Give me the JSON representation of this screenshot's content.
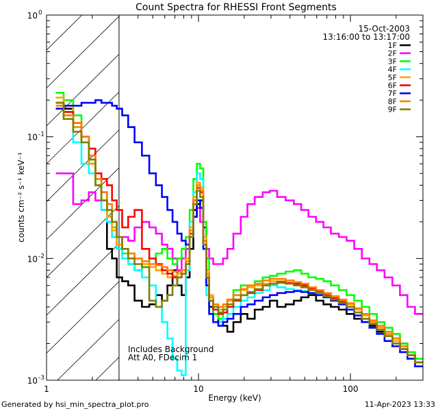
{
  "chart_data": {
    "type": "line",
    "title": "Count Spectra for RHESSI Front Segments",
    "xlabel": "Energy (keV)",
    "ylabel": "counts cm⁻² s⁻¹ keV⁻¹",
    "xscale": "log",
    "yscale": "log",
    "xlim": [
      1,
      300
    ],
    "ylim": [
      0.001,
      1
    ],
    "x_ticks": [
      {
        "value": 1,
        "label": "1"
      },
      {
        "value": 10,
        "label": "10"
      },
      {
        "value": 100,
        "label": "100"
      }
    ],
    "y_ticks": [
      {
        "value": 1,
        "base": "10",
        "exp": "0"
      },
      {
        "value": 0.1,
        "base": "10",
        "exp": "-1"
      },
      {
        "value": 0.01,
        "base": "10",
        "exp": "-2"
      },
      {
        "value": 0.001,
        "base": "10",
        "exp": "-3"
      }
    ],
    "date": "15-Oct-2003",
    "time_range": "13:16:00 to 13:17:00",
    "annotations": [
      "Includes Background",
      "Att A0, FDecim 1"
    ],
    "excluded_region": {
      "x_max": 3,
      "style": "hatched"
    },
    "legend_position": "top-right",
    "series": [
      {
        "name": "1F",
        "color": "#000000",
        "x": [
          1.2,
          1.4,
          1.6,
          1.8,
          2.0,
          2.2,
          2.4,
          2.6,
          2.8,
          3.0,
          3.3,
          3.6,
          4.0,
          4.5,
          5,
          5.5,
          6,
          6.5,
          7,
          7.5,
          8,
          8.5,
          9,
          9.5,
          10,
          10.5,
          11,
          11.5,
          12,
          13,
          14,
          15,
          16,
          18,
          20,
          22,
          25,
          28,
          31,
          35,
          40,
          45,
          50,
          56,
          63,
          70,
          79,
          89,
          100,
          112,
          126,
          141,
          158,
          178,
          200,
          224,
          251,
          282
        ],
        "y": [
          0.17,
          0.17,
          0.12,
          0.1,
          0.06,
          0.045,
          0.035,
          0.012,
          0.01,
          0.007,
          0.0065,
          0.006,
          0.0045,
          0.004,
          0.0042,
          0.005,
          0.0045,
          0.006,
          0.008,
          0.006,
          0.005,
          0.007,
          0.012,
          0.025,
          0.028,
          0.03,
          0.018,
          0.006,
          0.004,
          0.0035,
          0.003,
          0.0028,
          0.0025,
          0.003,
          0.0035,
          0.0032,
          0.0038,
          0.004,
          0.0045,
          0.004,
          0.0042,
          0.0045,
          0.0048,
          0.005,
          0.0045,
          0.0042,
          0.004,
          0.0038,
          0.0035,
          0.0032,
          0.003,
          0.0028,
          0.0025,
          0.0024,
          0.0022,
          0.002,
          0.0016,
          0.0014
        ]
      },
      {
        "name": "2F",
        "color": "#ff00ff",
        "x": [
          1.2,
          1.4,
          1.6,
          1.8,
          2.0,
          2.2,
          2.4,
          2.6,
          2.8,
          3.0,
          3.3,
          3.6,
          4.0,
          4.5,
          5,
          5.5,
          6,
          6.5,
          7,
          7.5,
          8,
          8.5,
          9,
          9.5,
          10,
          10.5,
          11,
          11.5,
          12,
          13,
          14,
          15,
          16,
          18,
          20,
          22,
          25,
          28,
          31,
          35,
          40,
          45,
          50,
          56,
          63,
          70,
          79,
          89,
          100,
          112,
          126,
          141,
          158,
          178,
          200,
          224,
          251,
          282
        ],
        "y": [
          0.05,
          0.05,
          0.028,
          0.03,
          0.035,
          0.03,
          0.025,
          0.02,
          0.015,
          0.012,
          0.015,
          0.014,
          0.018,
          0.02,
          0.018,
          0.016,
          0.013,
          0.012,
          0.01,
          0.008,
          0.01,
          0.012,
          0.018,
          0.022,
          0.026,
          0.02,
          0.014,
          0.012,
          0.01,
          0.009,
          0.009,
          0.01,
          0.012,
          0.016,
          0.022,
          0.028,
          0.032,
          0.035,
          0.036,
          0.032,
          0.03,
          0.028,
          0.025,
          0.022,
          0.02,
          0.018,
          0.016,
          0.015,
          0.014,
          0.012,
          0.01,
          0.009,
          0.008,
          0.007,
          0.006,
          0.005,
          0.004,
          0.0035
        ]
      },
      {
        "name": "3F",
        "color": "#00ff00",
        "x": [
          1.2,
          1.4,
          1.6,
          1.8,
          2.0,
          2.2,
          2.4,
          2.6,
          2.8,
          3.0,
          3.3,
          3.6,
          4.0,
          4.5,
          5,
          5.5,
          6,
          6.5,
          7,
          7.5,
          8,
          8.5,
          9,
          9.5,
          10,
          10.5,
          11,
          11.5,
          12,
          13,
          14,
          15,
          16,
          18,
          20,
          22,
          25,
          28,
          31,
          35,
          40,
          45,
          50,
          56,
          63,
          70,
          79,
          89,
          100,
          112,
          126,
          141,
          158,
          178,
          200,
          224,
          251,
          282
        ],
        "y": [
          0.23,
          0.2,
          0.15,
          0.1,
          0.06,
          0.04,
          0.03,
          0.022,
          0.018,
          0.012,
          0.011,
          0.009,
          0.008,
          0.009,
          0.01,
          0.011,
          0.012,
          0.01,
          0.009,
          0.01,
          0.012,
          0.015,
          0.025,
          0.045,
          0.06,
          0.055,
          0.02,
          0.01,
          0.0045,
          0.0035,
          0.0032,
          0.004,
          0.0045,
          0.0055,
          0.006,
          0.006,
          0.0065,
          0.007,
          0.0072,
          0.0075,
          0.0078,
          0.008,
          0.0075,
          0.007,
          0.0068,
          0.0065,
          0.006,
          0.0055,
          0.005,
          0.0045,
          0.004,
          0.0035,
          0.003,
          0.0027,
          0.0024,
          0.002,
          0.0017,
          0.0015
        ]
      },
      {
        "name": "4F",
        "color": "#00ffff",
        "x": [
          1.2,
          1.4,
          1.6,
          1.8,
          2.0,
          2.2,
          2.4,
          2.6,
          2.8,
          3.0,
          3.3,
          3.6,
          4.0,
          4.5,
          5,
          5.5,
          6,
          6.5,
          7,
          7.5,
          8,
          8.5,
          9,
          9.5,
          10,
          10.5,
          11,
          11.5,
          12,
          13,
          14,
          15,
          16,
          18,
          20,
          22,
          25,
          28,
          31,
          35,
          40,
          45,
          50,
          56,
          63,
          70,
          79,
          89,
          100,
          112,
          126,
          141,
          158,
          178,
          200,
          224,
          251,
          282
        ],
        "y": [
          0.19,
          0.16,
          0.09,
          0.06,
          0.05,
          0.04,
          0.025,
          0.02,
          0.015,
          0.012,
          0.01,
          0.009,
          0.008,
          0.007,
          0.006,
          0.004,
          0.003,
          0.0022,
          0.0015,
          0.0012,
          0.0011,
          0.008,
          0.02,
          0.035,
          0.05,
          0.045,
          0.015,
          0.005,
          0.0035,
          0.003,
          0.003,
          0.0032,
          0.0035,
          0.004,
          0.0045,
          0.0048,
          0.0052,
          0.0055,
          0.006,
          0.0058,
          0.0056,
          0.0055,
          0.0054,
          0.0052,
          0.005,
          0.0048,
          0.0045,
          0.0042,
          0.004,
          0.0036,
          0.0032,
          0.0029,
          0.0026,
          0.0023,
          0.002,
          0.0018,
          0.0016,
          0.0014
        ]
      },
      {
        "name": "5F",
        "color": "#ffa500",
        "x": [
          1.2,
          1.4,
          1.6,
          1.8,
          2.0,
          2.2,
          2.4,
          2.6,
          2.8,
          3.0,
          3.3,
          3.6,
          4.0,
          4.5,
          5,
          5.5,
          6,
          6.5,
          7,
          7.5,
          8,
          8.5,
          9,
          9.5,
          10,
          10.5,
          11,
          11.5,
          12,
          13,
          14,
          15,
          16,
          18,
          20,
          22,
          25,
          28,
          31,
          35,
          40,
          45,
          50,
          56,
          63,
          70,
          79,
          89,
          100,
          112,
          126,
          141,
          158,
          178,
          200,
          224,
          251,
          282
        ],
        "y": [
          0.21,
          0.18,
          0.12,
          0.09,
          0.06,
          0.04,
          0.03,
          0.022,
          0.017,
          0.013,
          0.012,
          0.011,
          0.01,
          0.009,
          0.0085,
          0.008,
          0.0075,
          0.007,
          0.0072,
          0.0075,
          0.008,
          0.01,
          0.018,
          0.032,
          0.042,
          0.038,
          0.015,
          0.008,
          0.005,
          0.004,
          0.0038,
          0.004,
          0.0045,
          0.005,
          0.0055,
          0.0058,
          0.006,
          0.0062,
          0.0065,
          0.0065,
          0.0062,
          0.006,
          0.0058,
          0.0055,
          0.0052,
          0.005,
          0.0048,
          0.0045,
          0.0042,
          0.0038,
          0.0034,
          0.003,
          0.0027,
          0.0024,
          0.0021,
          0.0019,
          0.0016,
          0.0014
        ]
      },
      {
        "name": "6F",
        "color": "#ff0000",
        "x": [
          1.2,
          1.4,
          1.6,
          1.8,
          2.0,
          2.2,
          2.4,
          2.6,
          2.8,
          3.0,
          3.3,
          3.6,
          4.0,
          4.5,
          5,
          5.5,
          6,
          6.5,
          7,
          7.5,
          8,
          8.5,
          9,
          9.5,
          10,
          10.5,
          11,
          11.5,
          12,
          13,
          14,
          15,
          16,
          18,
          20,
          22,
          25,
          28,
          31,
          35,
          40,
          45,
          50,
          56,
          63,
          70,
          79,
          89,
          100,
          112,
          126,
          141,
          158,
          178,
          200,
          224,
          251,
          282
        ],
        "y": [
          0.19,
          0.16,
          0.13,
          0.1,
          0.08,
          0.05,
          0.045,
          0.04,
          0.03,
          0.025,
          0.018,
          0.022,
          0.025,
          0.012,
          0.01,
          0.009,
          0.008,
          0.0075,
          0.007,
          0.007,
          0.0075,
          0.009,
          0.016,
          0.03,
          0.038,
          0.035,
          0.014,
          0.007,
          0.0045,
          0.0038,
          0.0035,
          0.0036,
          0.004,
          0.0045,
          0.005,
          0.0052,
          0.0055,
          0.006,
          0.0062,
          0.0064,
          0.0063,
          0.0062,
          0.006,
          0.0057,
          0.0054,
          0.005,
          0.0047,
          0.0044,
          0.004,
          0.0036,
          0.0032,
          0.0029,
          0.0026,
          0.0023,
          0.002,
          0.0018,
          0.0016,
          0.0014
        ]
      },
      {
        "name": "7F",
        "color": "#0000ff",
        "x": [
          1.2,
          1.4,
          1.6,
          1.8,
          2.0,
          2.2,
          2.4,
          2.6,
          2.8,
          3.0,
          3.3,
          3.6,
          4.0,
          4.5,
          5,
          5.5,
          6,
          6.5,
          7,
          7.5,
          8,
          8.5,
          9,
          9.5,
          10,
          10.5,
          11,
          11.5,
          12,
          13,
          14,
          15,
          16,
          18,
          20,
          22,
          25,
          28,
          31,
          35,
          40,
          45,
          50,
          56,
          63,
          70,
          79,
          89,
          100,
          112,
          126,
          141,
          158,
          178,
          200,
          224,
          251,
          282
        ],
        "y": [
          0.17,
          0.18,
          0.18,
          0.19,
          0.19,
          0.2,
          0.19,
          0.19,
          0.18,
          0.17,
          0.15,
          0.12,
          0.09,
          0.07,
          0.05,
          0.04,
          0.032,
          0.025,
          0.02,
          0.016,
          0.014,
          0.013,
          0.015,
          0.022,
          0.03,
          0.026,
          0.012,
          0.006,
          0.0035,
          0.003,
          0.0028,
          0.003,
          0.0032,
          0.0035,
          0.004,
          0.0042,
          0.0045,
          0.0048,
          0.005,
          0.0052,
          0.0053,
          0.0054,
          0.0053,
          0.0052,
          0.005,
          0.0048,
          0.0045,
          0.0042,
          0.0038,
          0.0034,
          0.003,
          0.0027,
          0.0024,
          0.0021,
          0.0019,
          0.0017,
          0.0015,
          0.0013
        ]
      },
      {
        "name": "8F",
        "color": "#ff7f00",
        "x": [
          1.2,
          1.4,
          1.6,
          1.8,
          2.0,
          2.2,
          2.4,
          2.6,
          2.8,
          3.0,
          3.3,
          3.6,
          4.0,
          4.5,
          5,
          5.5,
          6,
          6.5,
          7,
          7.5,
          8,
          8.5,
          9,
          9.5,
          10,
          10.5,
          11,
          11.5,
          12,
          13,
          14,
          15,
          16,
          18,
          20,
          22,
          25,
          28,
          31,
          35,
          40,
          45,
          50,
          56,
          63,
          70,
          79,
          89,
          100,
          112,
          126,
          141,
          158,
          178,
          200,
          224,
          251,
          282
        ],
        "y": [
          0.18,
          0.15,
          0.13,
          0.1,
          0.07,
          0.045,
          0.035,
          0.028,
          0.02,
          0.015,
          0.012,
          0.011,
          0.01,
          0.0095,
          0.009,
          0.0088,
          0.0085,
          0.008,
          0.0078,
          0.0078,
          0.008,
          0.0095,
          0.017,
          0.03,
          0.04,
          0.036,
          0.014,
          0.0075,
          0.0048,
          0.0042,
          0.004,
          0.0042,
          0.0046,
          0.005,
          0.0056,
          0.006,
          0.0062,
          0.0066,
          0.0068,
          0.0068,
          0.0066,
          0.0064,
          0.0062,
          0.0058,
          0.0055,
          0.0052,
          0.0049,
          0.0046,
          0.0043,
          0.0039,
          0.0035,
          0.0031,
          0.0028,
          0.0025,
          0.0022,
          0.0019,
          0.0016,
          0.0014
        ]
      },
      {
        "name": "9F",
        "color": "#808000",
        "x": [
          1.2,
          1.4,
          1.6,
          1.8,
          2.0,
          2.2,
          2.4,
          2.6,
          2.8,
          3.0,
          3.3,
          3.6,
          4.0,
          4.5,
          5,
          5.5,
          6,
          6.5,
          7,
          7.5,
          8,
          8.5,
          9,
          9.5,
          10,
          10.5,
          11,
          11.5,
          12,
          13,
          14,
          15,
          16,
          18,
          20,
          22,
          25,
          28,
          31,
          35,
          40,
          45,
          50,
          56,
          63,
          70,
          79,
          89,
          100,
          112,
          126,
          141,
          158,
          178,
          200,
          224,
          251,
          282
        ],
        "y": [
          0.19,
          0.14,
          0.11,
          0.09,
          0.065,
          0.04,
          0.03,
          0.025,
          0.02,
          0.015,
          0.012,
          0.01,
          0.009,
          0.0085,
          0.0045,
          0.004,
          0.0045,
          0.005,
          0.006,
          0.007,
          0.0075,
          0.009,
          0.015,
          0.028,
          0.036,
          0.032,
          0.013,
          0.007,
          0.0045,
          0.004,
          0.0036,
          0.0038,
          0.0042,
          0.0046,
          0.005,
          0.0053,
          0.0056,
          0.006,
          0.0062,
          0.0063,
          0.0062,
          0.006,
          0.0058,
          0.0055,
          0.0052,
          0.0049,
          0.0046,
          0.0043,
          0.004,
          0.0036,
          0.0032,
          0.0029,
          0.0026,
          0.0023,
          0.002,
          0.0018,
          0.0016,
          0.0014
        ]
      }
    ]
  },
  "footer": {
    "left": "Generated by hsi_min_spectra_plot.pro",
    "right": "11-Apr-2023 13:33"
  }
}
